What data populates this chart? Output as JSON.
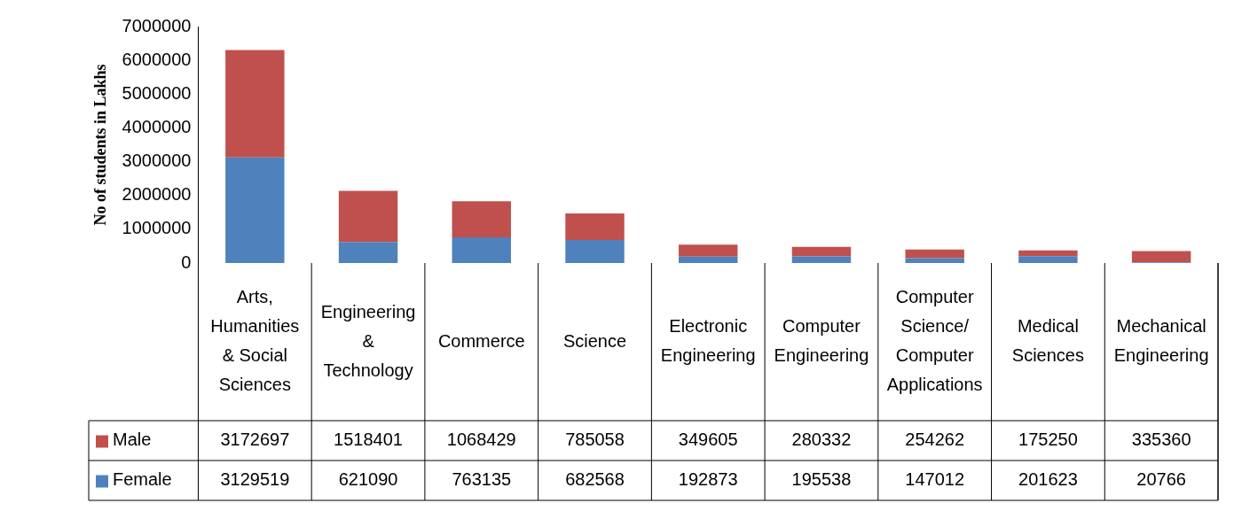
{
  "chart_data": {
    "type": "bar",
    "stacked": true,
    "ylabel": "No of students in Lakhs",
    "categories": [
      "Arts, Humanities & Social Sciences",
      "Engineering & Technology",
      "Commerce",
      "Science",
      "Electronic Engineering",
      "Computer Engineering",
      "Computer Science/ Computer Applications",
      "Medical Sciences",
      "Mechanical Engineering"
    ],
    "series": [
      {
        "name": "Female",
        "color": "#4f81bd",
        "values": [
          3129519,
          621090,
          763135,
          682568,
          192873,
          195538,
          147012,
          201623,
          20766
        ]
      },
      {
        "name": "Male",
        "color": "#c0504d",
        "values": [
          3172697,
          1518401,
          1068429,
          785058,
          349605,
          280332,
          254262,
          175250,
          335360
        ]
      }
    ],
    "ylim": [
      0,
      7000000
    ],
    "yticks": [
      0,
      1000000,
      2000000,
      3000000,
      4000000,
      5000000,
      6000000,
      7000000
    ],
    "grid": false,
    "legend": "bottom",
    "data_labels": true
  }
}
